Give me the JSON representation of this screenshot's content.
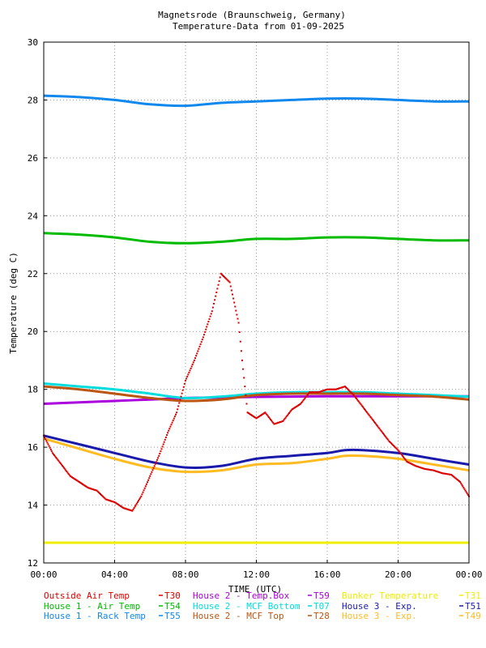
{
  "chart_data": {
    "type": "line",
    "title": "Magnetsrode (Braunschweig, Germany)",
    "subtitle": "Temperature-Data from 01-09-2025",
    "xlabel": "TIME (UTC)",
    "ylabel": "Temperature (deg C)",
    "xlim": [
      0,
      24
    ],
    "ylim": [
      12,
      30
    ],
    "grid": true,
    "x_ticks": [
      "00:00",
      "04:00",
      "08:00",
      "12:00",
      "16:00",
      "20:00",
      "00:00"
    ],
    "y_ticks": [
      "12",
      "14",
      "16",
      "18",
      "20",
      "22",
      "24",
      "26",
      "28",
      "30"
    ],
    "series": [
      {
        "name": "Outside Air Temp",
        "code": "T30",
        "color": "#dd0000",
        "marker": "dots",
        "x": [
          0,
          0.5,
          1,
          1.5,
          2,
          2.5,
          3,
          3.5,
          4,
          4.5,
          5,
          5.5,
          6,
          6.5,
          7,
          7.5,
          8,
          8.5,
          9,
          9.5,
          10,
          10.5,
          11,
          11.2,
          11.5,
          12,
          12.5,
          13,
          13.5,
          14,
          14.5,
          15,
          15.5,
          16,
          16.5,
          17,
          17.5,
          18,
          18.5,
          19,
          19.5,
          20,
          20.5,
          21,
          21.5,
          22,
          22.5,
          23,
          23.5,
          24
        ],
        "y": [
          16.4,
          15.8,
          15.4,
          15.0,
          14.8,
          14.6,
          14.5,
          14.2,
          14.1,
          13.9,
          13.8,
          14.3,
          15.0,
          15.7,
          16.5,
          17.2,
          18.3,
          19.0,
          19.8,
          20.7,
          22.0,
          21.7,
          20.3,
          19.0,
          17.2,
          17.0,
          17.2,
          16.8,
          16.9,
          17.3,
          17.5,
          17.9,
          17.9,
          18.0,
          18.0,
          18.1,
          17.8,
          17.4,
          17.0,
          16.6,
          16.2,
          15.9,
          15.5,
          15.35,
          15.25,
          15.2,
          15.1,
          15.05,
          14.8,
          14.3
        ]
      },
      {
        "name": "House 1 - Air  Temp",
        "code": "T54",
        "color": "#00bb00",
        "x": [
          0,
          2,
          4,
          6,
          8,
          10,
          12,
          14,
          16,
          18,
          20,
          22,
          24
        ],
        "y": [
          23.4,
          23.35,
          23.25,
          23.1,
          23.05,
          23.1,
          23.2,
          23.2,
          23.25,
          23.25,
          23.2,
          23.15,
          23.15
        ]
      },
      {
        "name": "House 1 - Rack Temp",
        "code": "T55",
        "color": "#1188ee",
        "x": [
          0,
          2,
          4,
          6,
          8,
          10,
          12,
          14,
          16,
          18,
          20,
          22,
          24
        ],
        "y": [
          28.15,
          28.1,
          28.0,
          27.85,
          27.8,
          27.9,
          27.95,
          28.0,
          28.05,
          28.05,
          28.0,
          27.95,
          27.95
        ]
      },
      {
        "name": "House 2 - Temp.Box",
        "code": "T59",
        "color": "#aa00dd",
        "x": [
          0,
          2,
          4,
          6,
          8,
          10,
          12,
          14,
          16,
          18,
          20,
          22,
          24
        ],
        "y": [
          17.5,
          17.55,
          17.6,
          17.65,
          17.7,
          17.72,
          17.74,
          17.75,
          17.76,
          17.76,
          17.76,
          17.76,
          17.76
        ]
      },
      {
        "name": "House 2 - MCF Bottom",
        "code": "T07",
        "color": "#00dddd",
        "x": [
          0,
          2,
          4,
          6,
          8,
          10,
          12,
          14,
          16,
          18,
          20,
          22,
          24
        ],
        "y": [
          18.2,
          18.1,
          18.0,
          17.85,
          17.7,
          17.75,
          17.85,
          17.9,
          17.9,
          17.9,
          17.85,
          17.8,
          17.75
        ]
      },
      {
        "name": "House 2 - MCF Top",
        "code": "T28",
        "color": "#bb5511",
        "x": [
          0,
          2,
          4,
          6,
          8,
          10,
          12,
          14,
          16,
          18,
          20,
          22,
          24
        ],
        "y": [
          18.1,
          18.0,
          17.85,
          17.7,
          17.6,
          17.65,
          17.8,
          17.85,
          17.85,
          17.85,
          17.8,
          17.75,
          17.65
        ]
      },
      {
        "name": "Bunker Temperature",
        "code": "T31",
        "color": "#eeee00",
        "x": [
          0,
          24
        ],
        "y": [
          12.7,
          12.7
        ]
      },
      {
        "name": "House 3 - Exp.",
        "code": "T51",
        "color": "#1a1aaa",
        "x": [
          0,
          2,
          4,
          6,
          8,
          10,
          12,
          14,
          16,
          17,
          18,
          20,
          22,
          24
        ],
        "y": [
          16.4,
          16.1,
          15.8,
          15.5,
          15.3,
          15.35,
          15.6,
          15.7,
          15.8,
          15.9,
          15.9,
          15.8,
          15.6,
          15.4
        ]
      },
      {
        "name": "House 3 - Exp.",
        "code": "T49",
        "color": "#ffbb22",
        "x": [
          0,
          2,
          4,
          6,
          8,
          10,
          12,
          14,
          16,
          17,
          18,
          20,
          22,
          24
        ],
        "y": [
          16.3,
          15.95,
          15.6,
          15.3,
          15.15,
          15.2,
          15.4,
          15.45,
          15.6,
          15.7,
          15.7,
          15.6,
          15.4,
          15.2
        ]
      }
    ],
    "legend_placement": "bottom",
    "legend_rows": [
      [
        {
          "name": "Outside Air Temp",
          "code": "T30",
          "color": "#dd0000"
        },
        {
          "name": "House 2 - Temp.Box",
          "code": "T59",
          "color": "#aa00dd"
        },
        {
          "name": "Bunker Temperature",
          "code": "T31",
          "color": "#eeee00"
        }
      ],
      [
        {
          "name": "House 1 - Air  Temp",
          "code": "T54",
          "color": "#00bb00"
        },
        {
          "name": "House 2 - MCF Bottom",
          "code": "T07",
          "color": "#00dddd"
        },
        {
          "name": "House 3 - Exp.",
          "code": "T51",
          "color": "#1a1aaa"
        }
      ],
      [
        {
          "name": "House 1 - Rack Temp",
          "code": "T55",
          "color": "#1188ee"
        },
        {
          "name": "House 2 - MCF Top",
          "code": "T28",
          "color": "#bb5511"
        },
        {
          "name": "House 3 - Exp.",
          "code": "T49",
          "color": "#ffbb22"
        }
      ]
    ]
  }
}
